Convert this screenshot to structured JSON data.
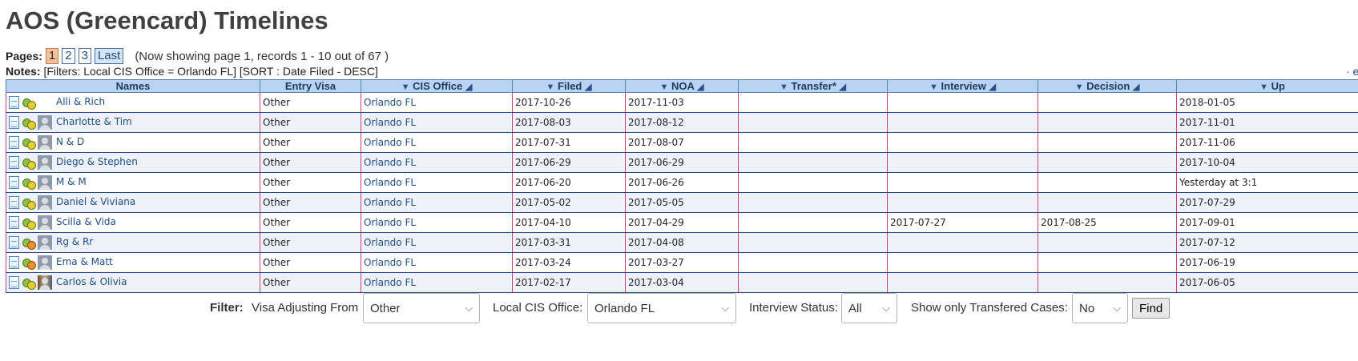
{
  "title": "AOS (Greencard) Timelines",
  "pagination": {
    "label": "Pages:",
    "pages": [
      "1",
      "2",
      "3"
    ],
    "last_label": "Last",
    "showing": "(Now showing page 1, records 1 - 10 out of 67 )"
  },
  "notes": {
    "label": "Notes:",
    "text": "[Filters: Local CIS Office = Orlando FL] [SORT : Date Filed - DESC]",
    "right_text": "· e"
  },
  "table": {
    "headers": {
      "names": "Names",
      "entry_visa": "Entry Visa",
      "cis_office": "CIS Office",
      "filed": "Filed",
      "noa": "NOA",
      "transfer": "Transfer*",
      "interview": "Interview",
      "decision": "Decision",
      "updated": "Up"
    },
    "rows": [
      {
        "name": "Alli & Rich",
        "visa": "Other",
        "office": "Orlando FL",
        "filed": "2017-10-26",
        "noa": "2017-11-03",
        "transfer": "",
        "interview": "",
        "decision": "",
        "updated": "2018-01-05"
      },
      {
        "name": "Charlotte & Tim",
        "visa": "Other",
        "office": "Orlando FL",
        "filed": "2017-08-03",
        "noa": "2017-08-12",
        "transfer": "",
        "interview": "",
        "decision": "",
        "updated": "2017-11-01"
      },
      {
        "name": "N & D",
        "visa": "Other",
        "office": "Orlando FL",
        "filed": "2017-07-31",
        "noa": "2017-08-07",
        "transfer": "",
        "interview": "",
        "decision": "",
        "updated": "2017-11-06"
      },
      {
        "name": "Diego & Stephen",
        "visa": "Other",
        "office": "Orlando FL",
        "filed": "2017-06-29",
        "noa": "2017-06-29",
        "transfer": "",
        "interview": "",
        "decision": "",
        "updated": "2017-10-04"
      },
      {
        "name": "M & M",
        "visa": "Other",
        "office": "Orlando FL",
        "filed": "2017-06-20",
        "noa": "2017-06-26",
        "transfer": "",
        "interview": "",
        "decision": "",
        "updated": "Yesterday at 3:1"
      },
      {
        "name": "Daniel & Viviana",
        "visa": "Other",
        "office": "Orlando FL",
        "filed": "2017-05-02",
        "noa": "2017-05-05",
        "transfer": "",
        "interview": "",
        "decision": "",
        "updated": "2017-07-29"
      },
      {
        "name": "Scilla & Vida",
        "visa": "Other",
        "office": "Orlando FL",
        "filed": "2017-04-10",
        "noa": "2017-04-29",
        "transfer": "",
        "interview": "2017-07-27",
        "decision": "2017-08-25",
        "updated": "2017-09-01"
      },
      {
        "name": "Rg & Rr",
        "visa": "Other",
        "office": "Orlando FL",
        "filed": "2017-03-31",
        "noa": "2017-04-08",
        "transfer": "",
        "interview": "",
        "decision": "",
        "updated": "2017-07-12"
      },
      {
        "name": "Ema & Matt",
        "visa": "Other",
        "office": "Orlando FL",
        "filed": "2017-03-24",
        "noa": "2017-03-27",
        "transfer": "",
        "interview": "",
        "decision": "",
        "updated": "2017-06-19"
      },
      {
        "name": "Carlos & Olivia",
        "visa": "Other",
        "office": "Orlando FL",
        "filed": "2017-02-17",
        "noa": "2017-03-04",
        "transfer": "",
        "interview": "",
        "decision": "",
        "updated": "2017-06-05"
      }
    ]
  },
  "filter": {
    "label": "Filter:",
    "visa_label": "Visa Adjusting From",
    "visa_value": "Other",
    "office_label": "Local CIS Office:",
    "office_value": "Orlando FL",
    "interview_label": "Interview Status:",
    "interview_value": "All",
    "transfer_label": "Show only Transfered Cases:",
    "transfer_value": "No",
    "find_label": "Find"
  }
}
